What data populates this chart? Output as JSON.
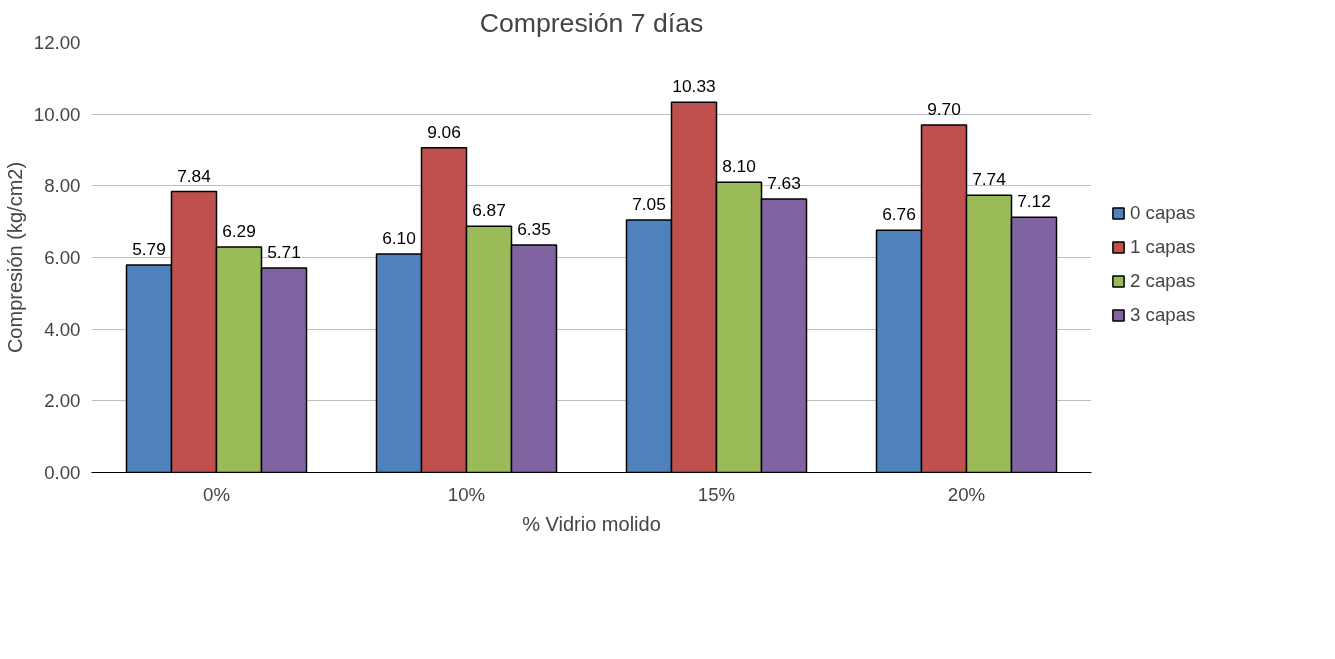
{
  "chart_data": {
    "type": "bar",
    "title": "Compresión 7 días",
    "xlabel": "% Vidrio molido",
    "ylabel": "Compresión (kg/cm2)",
    "categories": [
      "0%",
      "10%",
      "15%",
      "20%"
    ],
    "series": [
      {
        "name": "0 capas",
        "color": "#4f81bd",
        "values": [
          5.79,
          6.1,
          7.05,
          6.76
        ],
        "value_labels": [
          "5.79",
          "6.10",
          "7.05",
          "6.76"
        ]
      },
      {
        "name": "1 capas",
        "color": "#c0504d",
        "values": [
          7.84,
          9.06,
          10.33,
          9.7
        ],
        "value_labels": [
          "7.84",
          "9.06",
          "10.33",
          "9.70"
        ]
      },
      {
        "name": "2 capas",
        "color": "#9bbb59",
        "values": [
          6.29,
          6.87,
          8.1,
          7.74
        ],
        "value_labels": [
          "6.29",
          "6.87",
          "8.10",
          "7.74"
        ]
      },
      {
        "name": "3 capas",
        "color": "#8064a2",
        "values": [
          5.71,
          6.35,
          7.63,
          7.12
        ],
        "value_labels": [
          "5.71",
          "6.35",
          "7.63",
          "7.12"
        ]
      }
    ],
    "ylim": [
      0,
      12
    ],
    "yticks": [
      {
        "value": 0,
        "label": "0.00"
      },
      {
        "value": 2,
        "label": "2.00"
      },
      {
        "value": 4,
        "label": "4.00"
      },
      {
        "value": 6,
        "label": "6.00"
      },
      {
        "value": 8,
        "label": "8.00"
      },
      {
        "value": 10,
        "label": "10.00"
      },
      {
        "value": 12,
        "label": "12.00"
      }
    ],
    "grid": "y",
    "legend": "right",
    "data_labels": true
  }
}
